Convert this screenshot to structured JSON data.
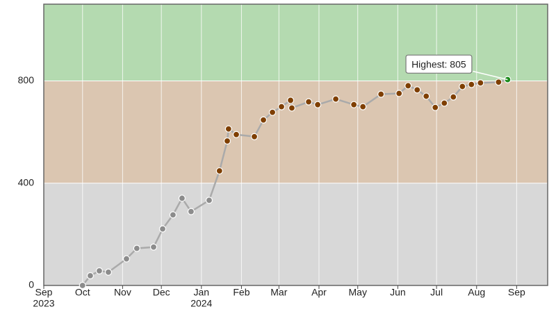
{
  "chart_data": {
    "type": "line",
    "x": [
      "2023-10-01",
      "2023-10-07",
      "2023-10-14",
      "2023-10-21",
      "2023-11-04",
      "2023-11-12",
      "2023-11-25",
      "2023-12-02",
      "2023-12-10",
      "2023-12-17",
      "2023-12-24",
      "2024-01-07",
      "2024-01-15",
      "2024-01-21",
      "2024-01-22",
      "2024-01-28",
      "2024-02-11",
      "2024-02-18",
      "2024-02-25",
      "2024-03-03",
      "2024-03-10",
      "2024-03-11",
      "2024-03-24",
      "2024-03-31",
      "2024-04-14",
      "2024-04-28",
      "2024-05-05",
      "2024-05-19",
      "2024-06-02",
      "2024-06-09",
      "2024-06-16",
      "2024-06-23",
      "2024-06-30",
      "2024-07-07",
      "2024-07-14",
      "2024-07-21",
      "2024-07-28",
      "2024-08-04",
      "2024-08-18",
      "2024-08-25"
    ],
    "series": [
      {
        "color": "#aaaaaa",
        "values": [
          0,
          38,
          57,
          52,
          104,
          145,
          150,
          221,
          276,
          341,
          289,
          333,
          448,
          565,
          612,
          590,
          582,
          647,
          677,
          699,
          724,
          694,
          718,
          707,
          729,
          707,
          699,
          748,
          751,
          781,
          765,
          740,
          696,
          713,
          737,
          778,
          786,
          792,
          795,
          805
        ]
      }
    ],
    "xlim": [
      "2023-09-01",
      "2024-09-25"
    ],
    "xticks": [
      {
        "value": "2023-09-01",
        "label": [
          "Sep",
          "2023"
        ]
      },
      {
        "value": "2023-10-01",
        "label": [
          "Oct"
        ]
      },
      {
        "value": "2023-11-01",
        "label": [
          "Nov"
        ]
      },
      {
        "value": "2023-12-01",
        "label": [
          "Dec"
        ]
      },
      {
        "value": "2024-01-01",
        "label": [
          "Jan",
          "2024"
        ]
      },
      {
        "value": "2024-02-01",
        "label": [
          "Feb"
        ]
      },
      {
        "value": "2024-03-01",
        "label": [
          "Mar"
        ]
      },
      {
        "value": "2024-04-01",
        "label": [
          "Apr"
        ]
      },
      {
        "value": "2024-05-01",
        "label": [
          "May"
        ]
      },
      {
        "value": "2024-06-01",
        "label": [
          "Jun"
        ]
      },
      {
        "value": "2024-07-01",
        "label": [
          "Jul"
        ]
      },
      {
        "value": "2024-08-01",
        "label": [
          "Aug"
        ]
      },
      {
        "value": "2024-09-01",
        "label": [
          "Sep"
        ]
      }
    ],
    "ylim": [
      0,
      1100
    ],
    "yticks": [
      0,
      400,
      800
    ],
    "grid": true,
    "bands": [
      {
        "from": 0,
        "to": 400,
        "color": "#d8d8d8",
        "marker_color": "#8c8c8c"
      },
      {
        "from": 400,
        "to": 800,
        "color": "#dbc6b1",
        "marker_color": "#7f3f00"
      },
      {
        "from": 800,
        "to": 1100,
        "color": "#b4dab0",
        "marker_color": "#1a8a1a"
      }
    ],
    "annotation": {
      "text": "Highest: 805",
      "x": "2024-08-25",
      "y": 805
    }
  }
}
